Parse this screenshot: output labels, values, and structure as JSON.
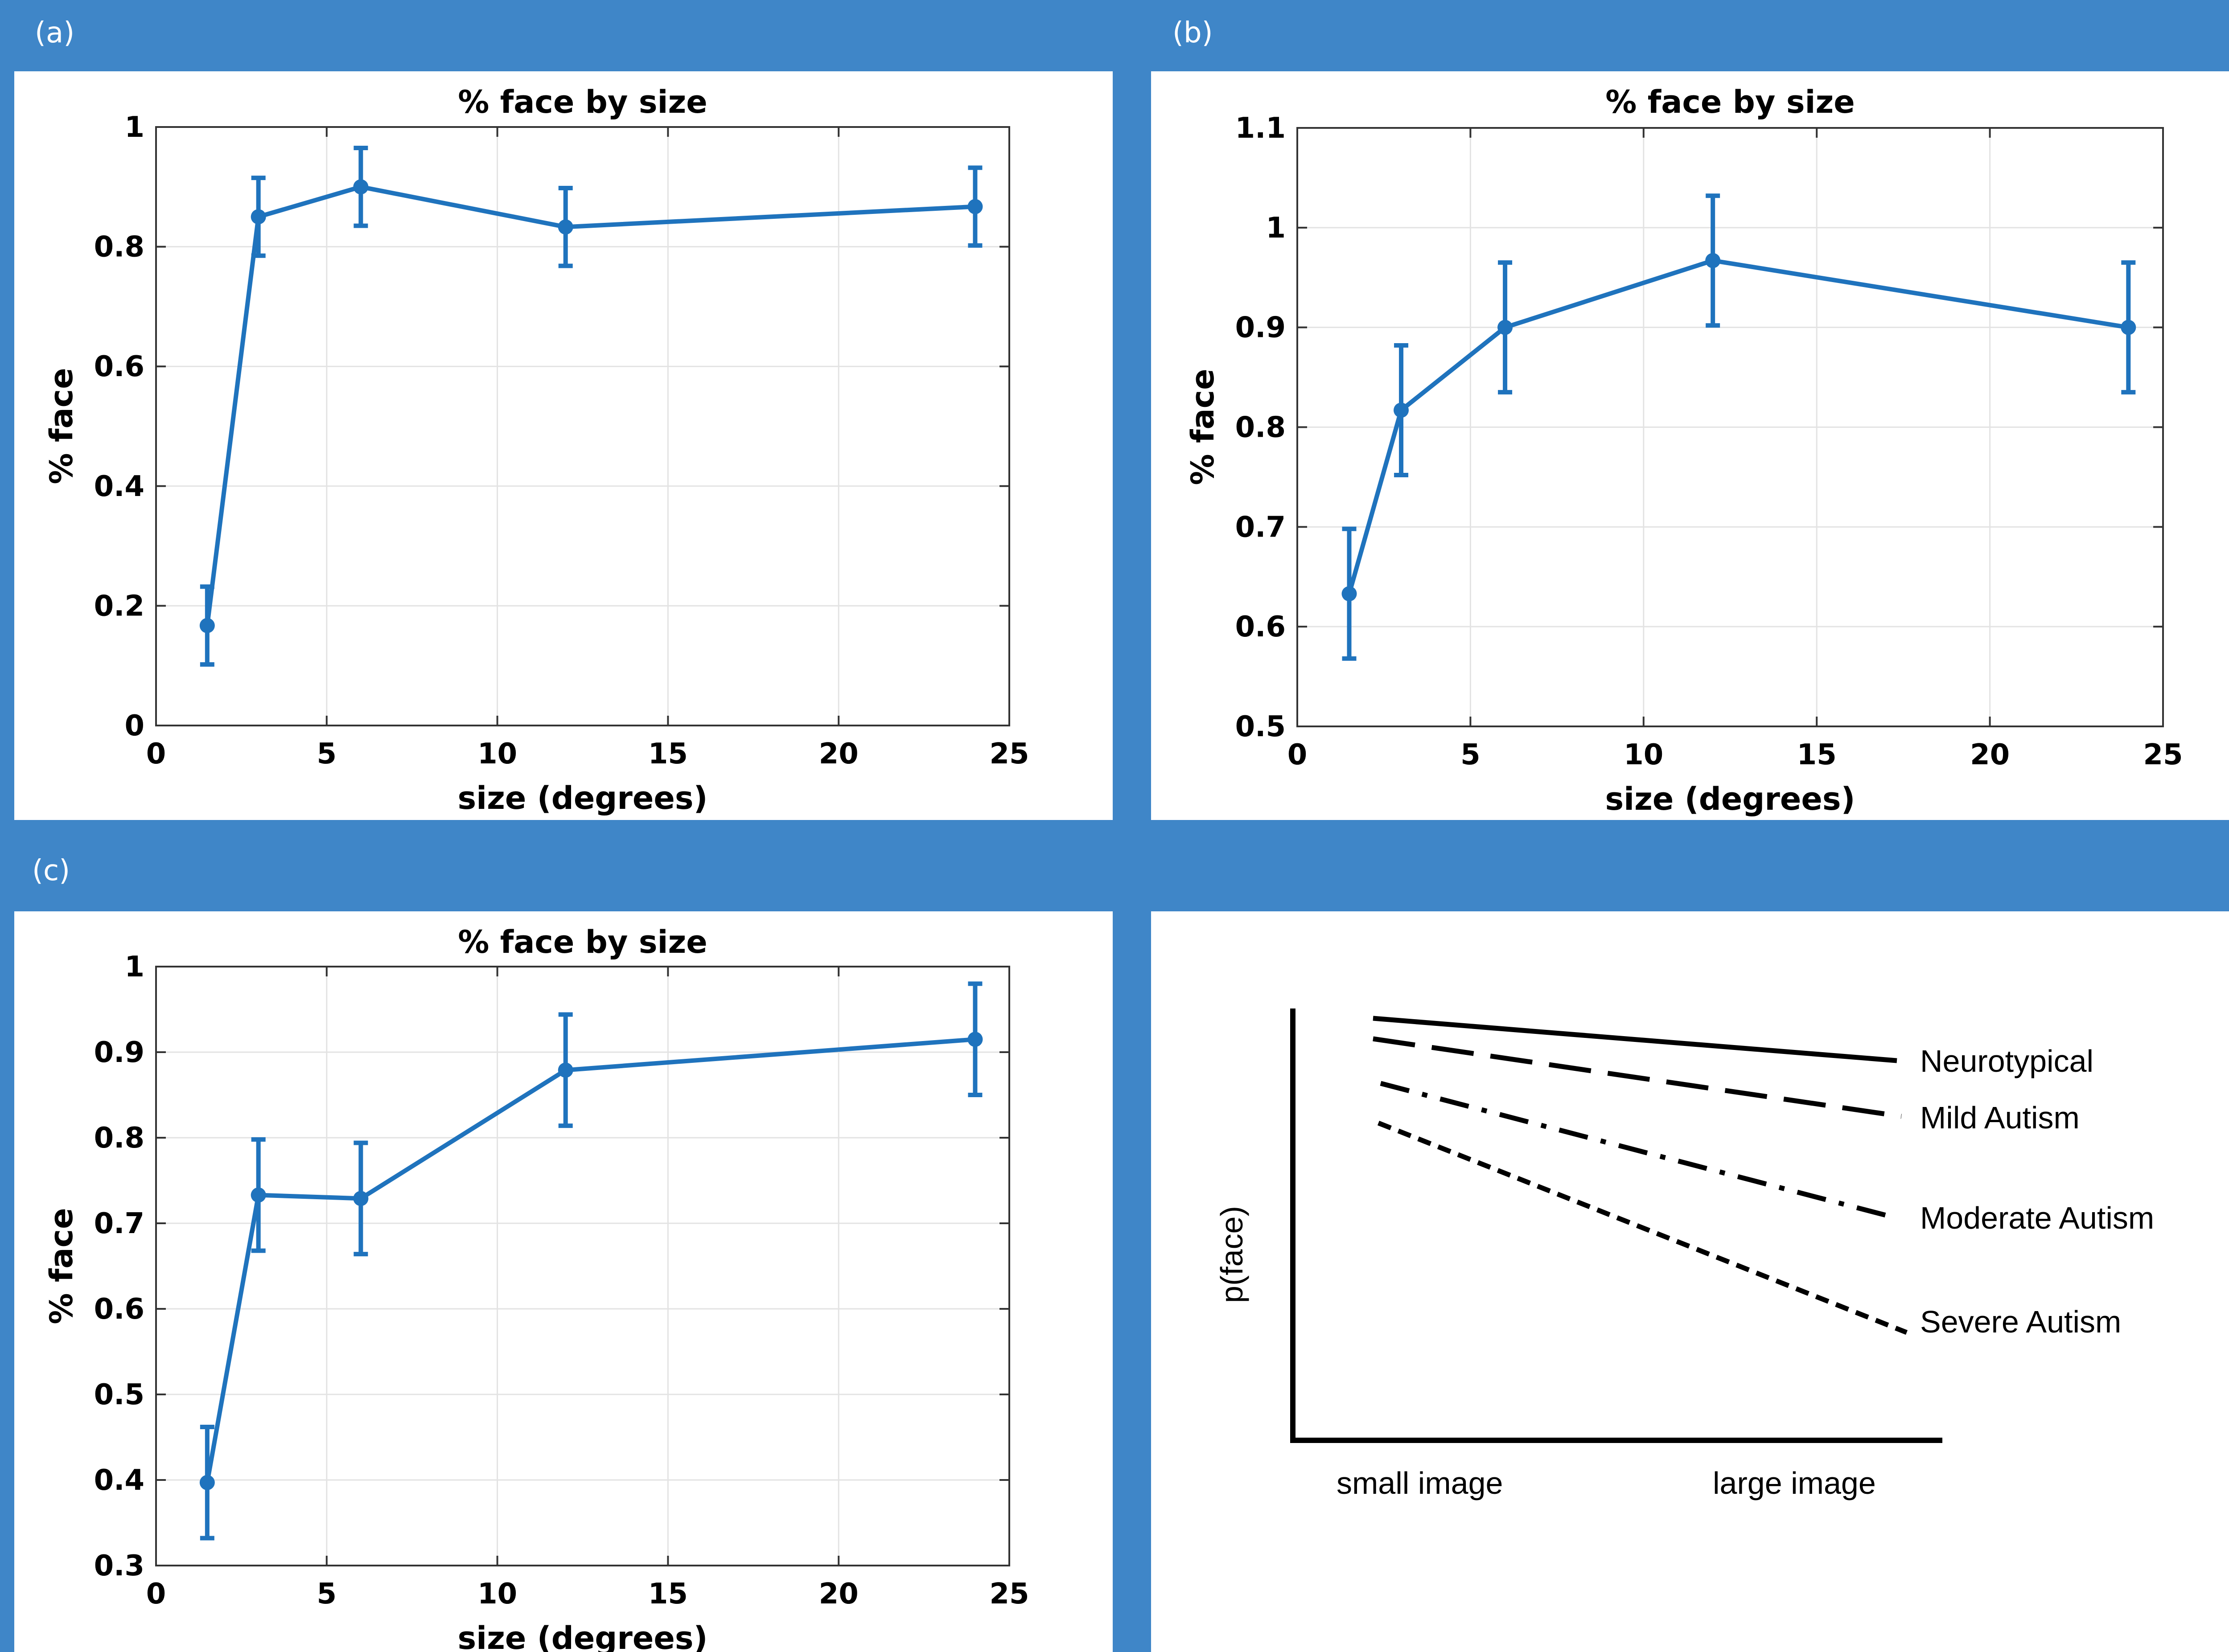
{
  "panel_labels": [
    "(a)",
    "(b)",
    "(c)"
  ],
  "chart_data": [
    {
      "type": "line",
      "title": "% face by size",
      "xlabel": "size (degrees)",
      "ylabel": "% face",
      "xlim": [
        0,
        25
      ],
      "ylim": [
        0,
        1
      ],
      "xticks": [
        0,
        5,
        10,
        15,
        20,
        25
      ],
      "xtick_labels": [
        "0",
        "5",
        "10",
        "15",
        "20",
        "25"
      ],
      "yticks": [
        0,
        0.2,
        0.4,
        0.6,
        0.8,
        1
      ],
      "ytick_labels": [
        "0",
        "0.2",
        "0.4",
        "0.6",
        "0.8",
        "1"
      ],
      "grid": true,
      "color": "#1f73bd",
      "series": [
        {
          "x": [
            1.5,
            3,
            6,
            12,
            24
          ],
          "y": [
            0.167,
            0.85,
            0.9,
            0.833,
            0.867
          ],
          "err": [
            0.065,
            0.065,
            0.065,
            0.065,
            0.065
          ]
        }
      ]
    },
    {
      "type": "line",
      "title": "% face by size",
      "xlabel": "size (degrees)",
      "ylabel": "% face",
      "xlim": [
        0,
        25
      ],
      "ylim": [
        0.5,
        1.1
      ],
      "xticks": [
        0,
        5,
        10,
        15,
        20,
        25
      ],
      "xtick_labels": [
        "0",
        "5",
        "10",
        "15",
        "20",
        "25"
      ],
      "yticks": [
        0.5,
        0.6,
        0.7,
        0.8,
        0.9,
        1,
        1.1
      ],
      "ytick_labels": [
        "0.5",
        "0.6",
        "0.7",
        "0.8",
        "0.9",
        "1",
        "1.1"
      ],
      "grid": true,
      "color": "#1f73bd",
      "series": [
        {
          "x": [
            1.5,
            3,
            6,
            12,
            24
          ],
          "y": [
            0.633,
            0.817,
            0.9,
            0.967,
            0.9
          ],
          "err": [
            0.065,
            0.065,
            0.065,
            0.065,
            0.065
          ]
        }
      ]
    },
    {
      "type": "line",
      "title": "% face by size",
      "xlabel": "size (degrees)",
      "ylabel": "% face",
      "xlim": [
        0,
        25
      ],
      "ylim": [
        0.3,
        1
      ],
      "xticks": [
        0,
        5,
        10,
        15,
        20,
        25
      ],
      "xtick_labels": [
        "0",
        "5",
        "10",
        "15",
        "20",
        "25"
      ],
      "yticks": [
        0.3,
        0.4,
        0.5,
        0.6,
        0.7,
        0.8,
        0.9,
        1
      ],
      "ytick_labels": [
        "0.3",
        "0.4",
        "0.5",
        "0.6",
        "0.7",
        "0.8",
        "0.9",
        "1"
      ],
      "grid": true,
      "color": "#1f73bd",
      "series": [
        {
          "x": [
            1.5,
            3,
            6,
            12,
            24
          ],
          "y": [
            0.397,
            0.733,
            0.729,
            0.879,
            0.915
          ],
          "err": [
            0.065,
            0.065,
            0.065,
            0.065,
            0.065
          ]
        }
      ]
    }
  ],
  "schematic": {
    "ylabel": "p(face)",
    "xlabel_left": "small image",
    "xlabel_right": "large image",
    "lines": [
      {
        "label": "Neurotypical",
        "style": "solid"
      },
      {
        "label": "Mild Autism",
        "style": "long-dash"
      },
      {
        "label": "Moderate Autism",
        "style": "dash-dot"
      },
      {
        "label": "Severe Autism",
        "style": "short-dash"
      }
    ]
  }
}
